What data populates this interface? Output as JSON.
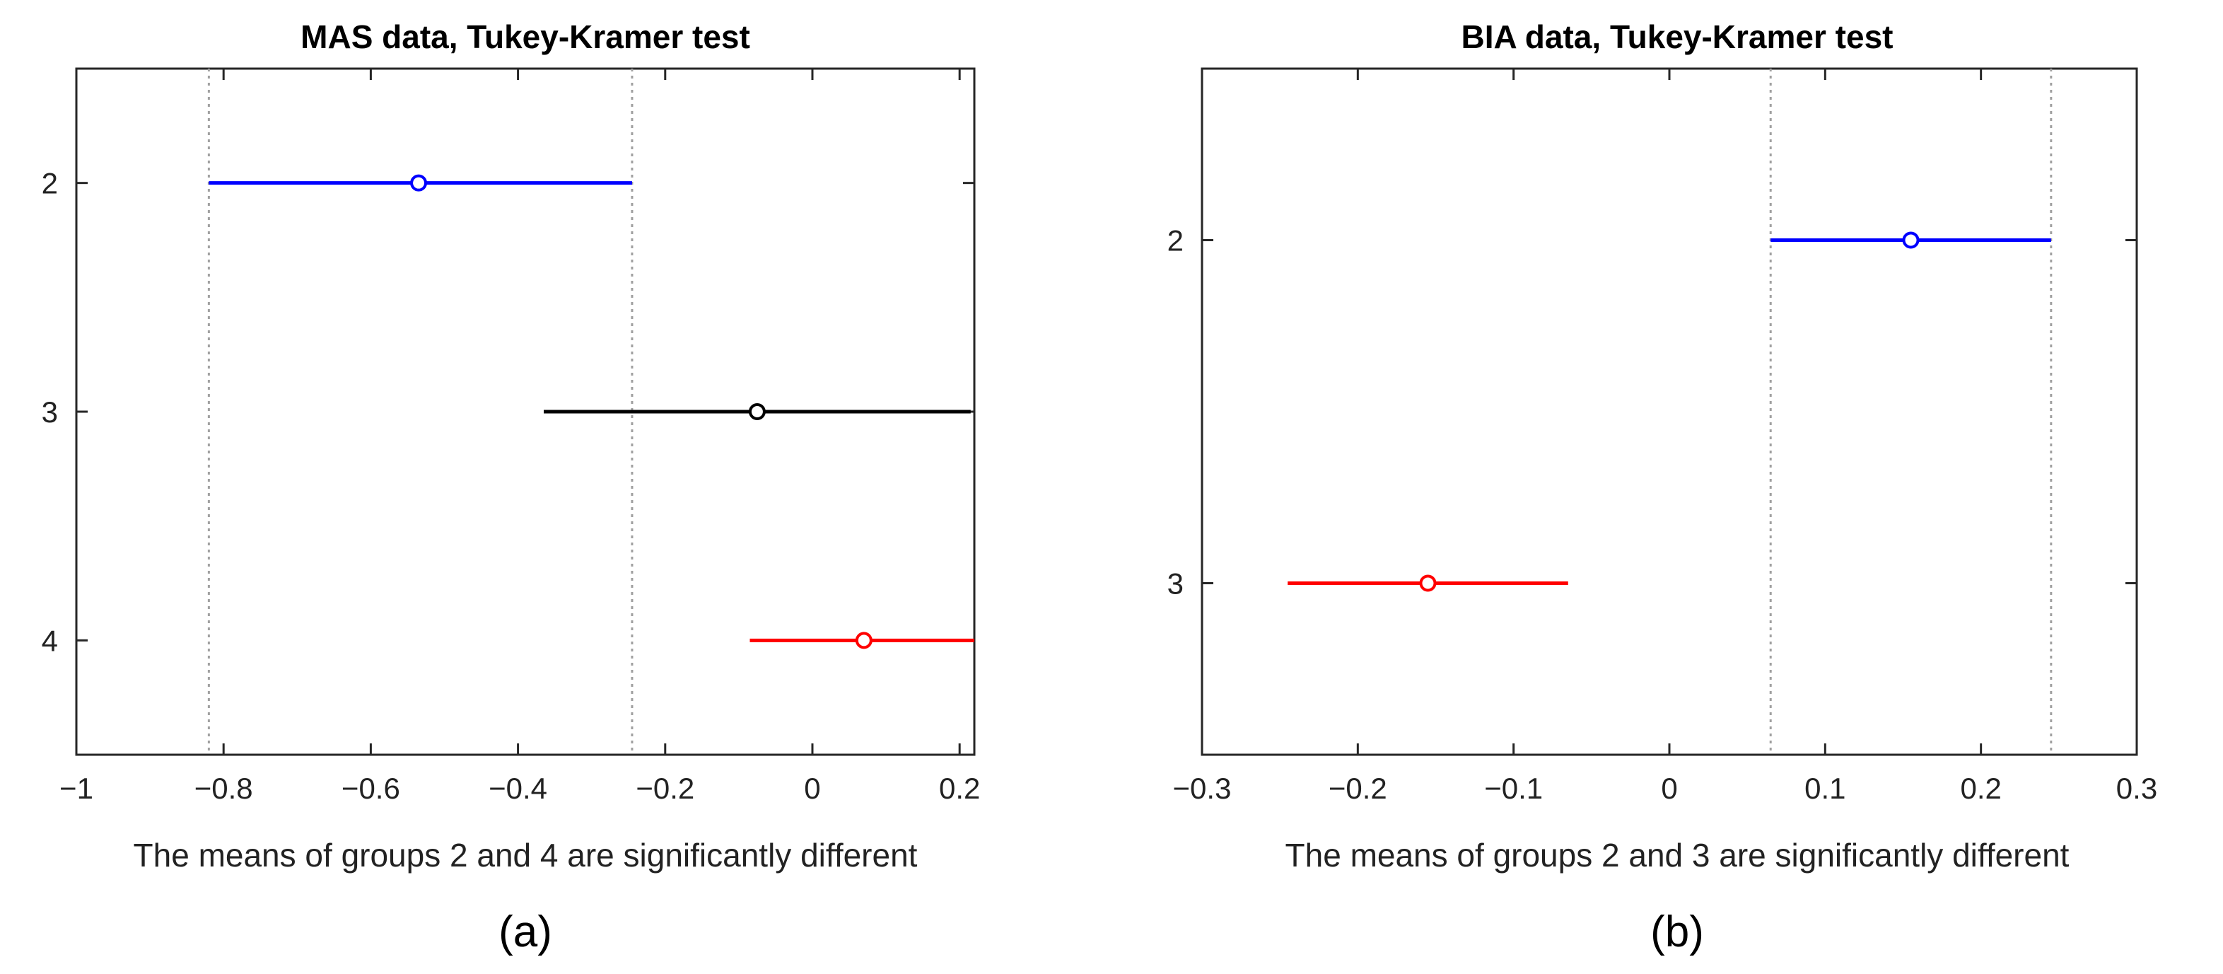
{
  "chart_data": [
    {
      "type": "multiple-comparison",
      "title": "MAS data, Tukey-Kramer test",
      "xlabel": "The means of groups 2 and 4 are significantly different",
      "caption": "(a)",
      "xlim": [
        -1,
        0.22
      ],
      "ylim": [
        1.5,
        4.5
      ],
      "xticks": [
        -1,
        -0.8,
        -0.6,
        -0.4,
        -0.2,
        0,
        0.2
      ],
      "xtick_labels": [
        "−1",
        "−0.8",
        "−0.6",
        "−0.4",
        "−0.2",
        "0",
        "0.2"
      ],
      "yticks": [
        2,
        3,
        4
      ],
      "ytick_labels": [
        "2",
        "3",
        "4"
      ],
      "reference_lines": [
        -0.82,
        -0.245
      ],
      "groups": [
        {
          "group": "2",
          "mean": -0.535,
          "lower": -0.82,
          "upper": -0.245,
          "color": "#0000ff"
        },
        {
          "group": "3",
          "mean": -0.075,
          "lower": -0.365,
          "upper": 0.215,
          "color": "#000000"
        },
        {
          "group": "4",
          "mean": 0.07,
          "lower": -0.085,
          "upper": 0.22,
          "color": "#ff0000"
        }
      ]
    },
    {
      "type": "multiple-comparison",
      "title": "BIA data, Tukey-Kramer test",
      "xlabel": "The means of groups 2 and 3 are significantly different",
      "caption": "(b)",
      "xlim": [
        -0.3,
        0.3
      ],
      "ylim": [
        1.5,
        3.5
      ],
      "xticks": [
        -0.3,
        -0.2,
        -0.1,
        0,
        0.1,
        0.2,
        0.3
      ],
      "xtick_labels": [
        "−0.3",
        "−0.2",
        "−0.1",
        "0",
        "0.1",
        "0.2",
        "0.3"
      ],
      "yticks": [
        2,
        3
      ],
      "ytick_labels": [
        "2",
        "3"
      ],
      "reference_lines": [
        0.065,
        0.245
      ],
      "groups": [
        {
          "group": "2",
          "mean": 0.155,
          "lower": 0.065,
          "upper": 0.245,
          "color": "#0000ff"
        },
        {
          "group": "3",
          "mean": -0.155,
          "lower": -0.245,
          "upper": -0.065,
          "color": "#ff0000"
        }
      ]
    }
  ]
}
